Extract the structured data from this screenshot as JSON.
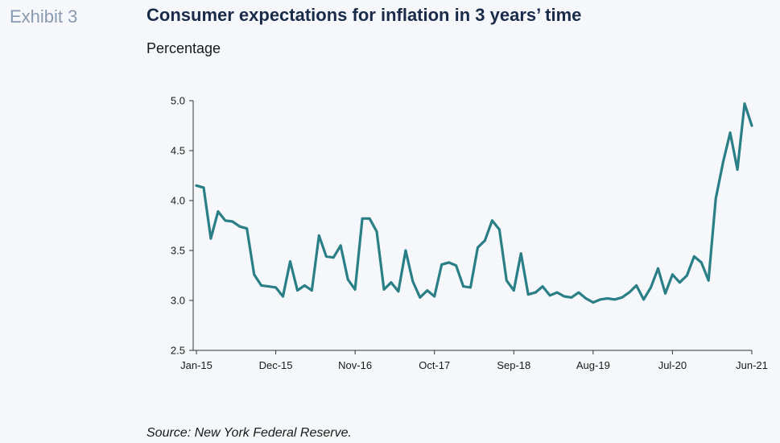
{
  "exhibit_label": "Exhibit 3",
  "source": "Source: New York Federal Reserve.",
  "colors": {
    "line": "#2a7f86",
    "axis": "#333333"
  },
  "chart_data": {
    "type": "line",
    "title": "Consumer expectations for inflation in 3 years’ time",
    "subtitle": "Percentage",
    "xlabel": "",
    "ylabel": "",
    "ylim": [
      2.5,
      5.0
    ],
    "yticks": [
      "5.0",
      "4.5",
      "4.0",
      "3.5",
      "3.0",
      "2.5"
    ],
    "xtick_labels": [
      "Jan-15",
      "Dec-15",
      "Nov-16",
      "Oct-17",
      "Sep-18",
      "Aug-19",
      "Jul-20",
      "Jun-21"
    ],
    "grid": false,
    "series": [
      {
        "name": "",
        "x_start": "Jan-15",
        "frequency": "monthly",
        "values": [
          4.15,
          4.13,
          3.62,
          3.89,
          3.8,
          3.79,
          3.74,
          3.72,
          3.26,
          3.15,
          3.14,
          3.13,
          3.04,
          3.39,
          3.1,
          3.15,
          3.1,
          3.65,
          3.44,
          3.43,
          3.55,
          3.21,
          3.11,
          3.82,
          3.82,
          3.69,
          3.11,
          3.18,
          3.09,
          3.5,
          3.19,
          3.03,
          3.1,
          3.04,
          3.36,
          3.38,
          3.35,
          3.14,
          3.13,
          3.53,
          3.6,
          3.8,
          3.71,
          3.2,
          3.1,
          3.47,
          3.06,
          3.08,
          3.14,
          3.05,
          3.08,
          3.04,
          3.03,
          3.08,
          3.02,
          2.98,
          3.01,
          3.02,
          3.01,
          3.03,
          3.08,
          3.15,
          3.01,
          3.13,
          3.32,
          3.07,
          3.26,
          3.18,
          3.25,
          3.44,
          3.38,
          3.2,
          4.02,
          4.38,
          4.68,
          4.31,
          4.97,
          4.75
        ]
      }
    ]
  }
}
